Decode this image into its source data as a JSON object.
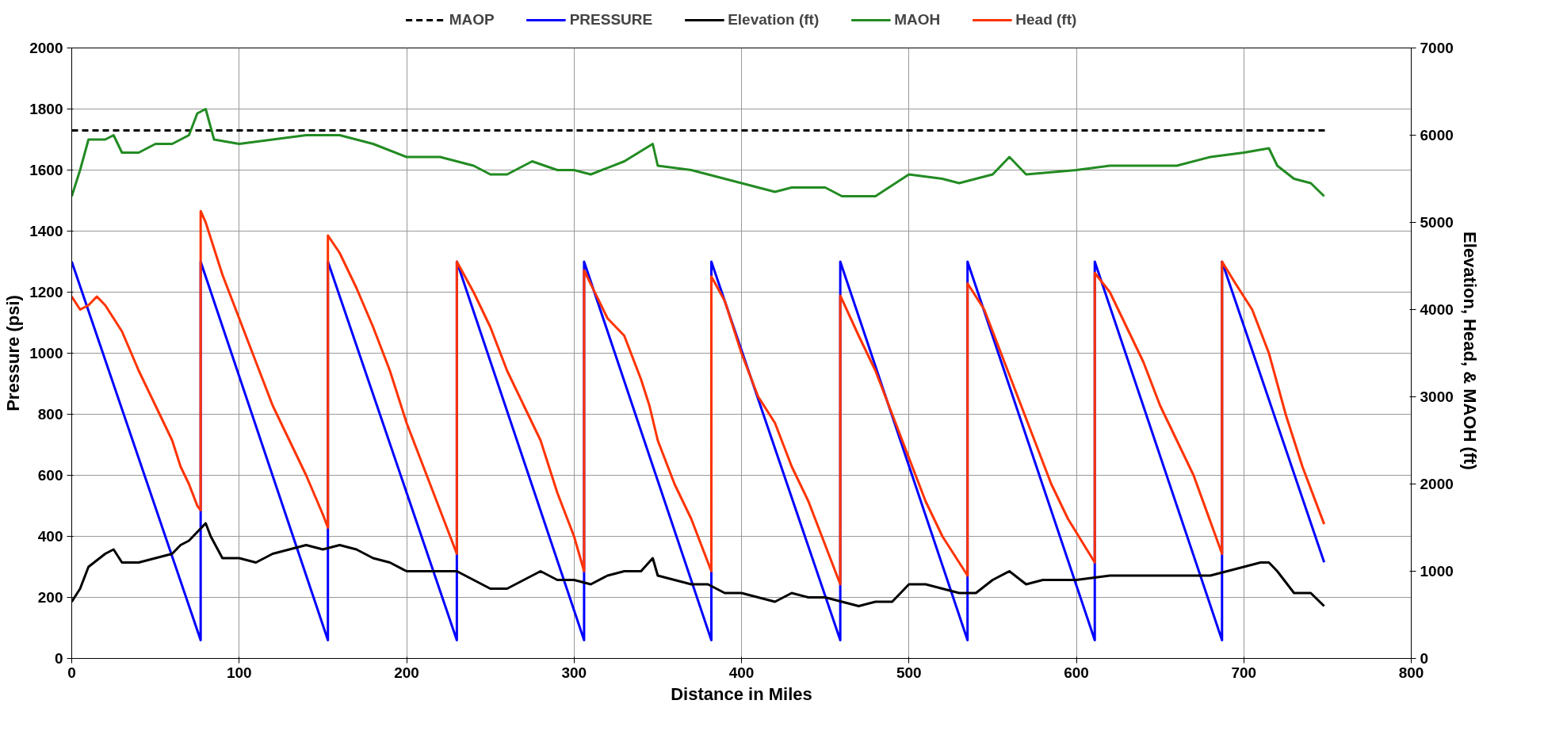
{
  "chart_data": {
    "type": "line",
    "xlabel": "Distance in Miles",
    "ylabel": "Pressure (psi)",
    "y2label": "Elevation, Head, & MAOH  (ft)",
    "xlim": [
      0,
      800
    ],
    "xticks": [
      0,
      100,
      200,
      300,
      400,
      500,
      600,
      700,
      800
    ],
    "ylim": [
      0,
      2000
    ],
    "yticks": [
      0,
      200,
      400,
      600,
      800,
      1000,
      1200,
      1400,
      1600,
      1800,
      2000
    ],
    "y2lim": [
      0,
      7000
    ],
    "y2ticks": [
      0,
      1000,
      2000,
      3000,
      4000,
      5000,
      6000,
      7000
    ],
    "grid": true,
    "legend": "top",
    "marker": "none",
    "series": [
      {
        "name": "MAOP",
        "color": "#000000",
        "line_style": "dashed",
        "x": [
          0,
          750
        ],
        "values": [
          1730,
          1730
        ]
      },
      {
        "name": "PRESSURE",
        "color": "#0000ff",
        "x": [
          0,
          77,
          77,
          153,
          153,
          230,
          230,
          306,
          306,
          382,
          382,
          459,
          459,
          535,
          535,
          611,
          611,
          687,
          687,
          748
        ],
        "values": [
          1300,
          60,
          1300,
          60,
          1300,
          60,
          1300,
          60,
          1300,
          60,
          1300,
          60,
          1300,
          60,
          1300,
          60,
          1300,
          60,
          1300,
          315
        ]
      },
      {
        "name": "Elevation (ft)",
        "color": "#000000",
        "axis": "y2",
        "x": [
          0,
          5,
          10,
          20,
          25,
          30,
          40,
          50,
          60,
          65,
          70,
          75,
          80,
          83,
          90,
          100,
          110,
          120,
          130,
          140,
          150,
          160,
          170,
          180,
          190,
          200,
          210,
          220,
          230,
          240,
          250,
          260,
          270,
          280,
          290,
          300,
          310,
          320,
          330,
          340,
          347,
          350,
          360,
          370,
          380,
          390,
          400,
          410,
          420,
          430,
          440,
          450,
          460,
          470,
          480,
          490,
          500,
          510,
          520,
          530,
          540,
          550,
          560,
          570,
          580,
          590,
          600,
          620,
          640,
          660,
          680,
          690,
          700,
          710,
          715,
          720,
          730,
          740,
          748
        ],
        "values": [
          650,
          800,
          1050,
          1200,
          1250,
          1100,
          1100,
          1150,
          1200,
          1300,
          1350,
          1450,
          1550,
          1400,
          1150,
          1150,
          1100,
          1200,
          1250,
          1300,
          1250,
          1300,
          1250,
          1150,
          1100,
          1000,
          1000,
          1000,
          1000,
          900,
          800,
          800,
          900,
          1000,
          900,
          900,
          850,
          950,
          1000,
          1000,
          1150,
          950,
          900,
          850,
          850,
          750,
          750,
          700,
          650,
          750,
          700,
          700,
          650,
          600,
          650,
          650,
          850,
          850,
          800,
          750,
          750,
          900,
          1000,
          850,
          900,
          900,
          900,
          950,
          950,
          950,
          950,
          1000,
          1050,
          1100,
          1100,
          1000,
          750,
          750,
          600
        ]
      },
      {
        "name": "MAOH",
        "color": "#228b22",
        "axis": "y2",
        "x": [
          0,
          5,
          10,
          20,
          25,
          30,
          40,
          50,
          60,
          70,
          75,
          80,
          85,
          100,
          120,
          140,
          160,
          180,
          200,
          220,
          240,
          250,
          260,
          275,
          290,
          300,
          310,
          330,
          347,
          350,
          370,
          380,
          400,
          420,
          430,
          450,
          460,
          480,
          500,
          520,
          530,
          550,
          560,
          570,
          600,
          620,
          640,
          660,
          680,
          700,
          715,
          720,
          730,
          740,
          748
        ],
        "values": [
          5300,
          5600,
          5950,
          5950,
          6000,
          5800,
          5800,
          5900,
          5900,
          6000,
          6250,
          6300,
          5950,
          5900,
          5950,
          6000,
          6000,
          5900,
          5750,
          5750,
          5650,
          5550,
          5550,
          5700,
          5600,
          5600,
          5550,
          5700,
          5900,
          5650,
          5600,
          5550,
          5450,
          5350,
          5400,
          5400,
          5300,
          5300,
          5550,
          5500,
          5450,
          5550,
          5750,
          5550,
          5600,
          5650,
          5650,
          5650,
          5750,
          5800,
          5850,
          5650,
          5500,
          5450,
          5300
        ]
      },
      {
        "name": "Head (ft)",
        "color": "#ff3300",
        "axis": "y2",
        "x": [
          0,
          5,
          10,
          15,
          20,
          30,
          40,
          50,
          60,
          65,
          70,
          75,
          77,
          77,
          80,
          90,
          100,
          110,
          120,
          130,
          140,
          150,
          153,
          153,
          160,
          170,
          180,
          190,
          200,
          210,
          220,
          230,
          230,
          240,
          250,
          260,
          270,
          280,
          290,
          300,
          306,
          306,
          320,
          330,
          340,
          345,
          350,
          360,
          370,
          382,
          382,
          390,
          400,
          410,
          420,
          430,
          440,
          450,
          459,
          459,
          470,
          480,
          490,
          500,
          510,
          520,
          535,
          535,
          545,
          555,
          565,
          575,
          585,
          595,
          611,
          611,
          620,
          630,
          640,
          650,
          660,
          670,
          687,
          687,
          695,
          705,
          715,
          725,
          735,
          748
        ],
        "values": [
          4150,
          4000,
          4050,
          4150,
          4050,
          3750,
          3300,
          2900,
          2500,
          2200,
          2000,
          1750,
          1700,
          5130,
          5000,
          4400,
          3900,
          3400,
          2900,
          2500,
          2100,
          1650,
          1500,
          4850,
          4650,
          4250,
          3800,
          3300,
          2700,
          2200,
          1700,
          1200,
          4550,
          4200,
          3800,
          3300,
          2900,
          2500,
          1900,
          1400,
          1000,
          4450,
          3900,
          3700,
          3200,
          2900,
          2500,
          2000,
          1600,
          1000,
          4380,
          4100,
          3500,
          3000,
          2700,
          2200,
          1800,
          1300,
          850,
          4160,
          3700,
          3300,
          2800,
          2300,
          1800,
          1400,
          950,
          4300,
          4000,
          3500,
          3000,
          2500,
          2000,
          1600,
          1100,
          4420,
          4200,
          3800,
          3400,
          2900,
          2500,
          2100,
          1200,
          4550,
          4300,
          4000,
          3500,
          2800,
          2200,
          1540
        ]
      }
    ]
  }
}
